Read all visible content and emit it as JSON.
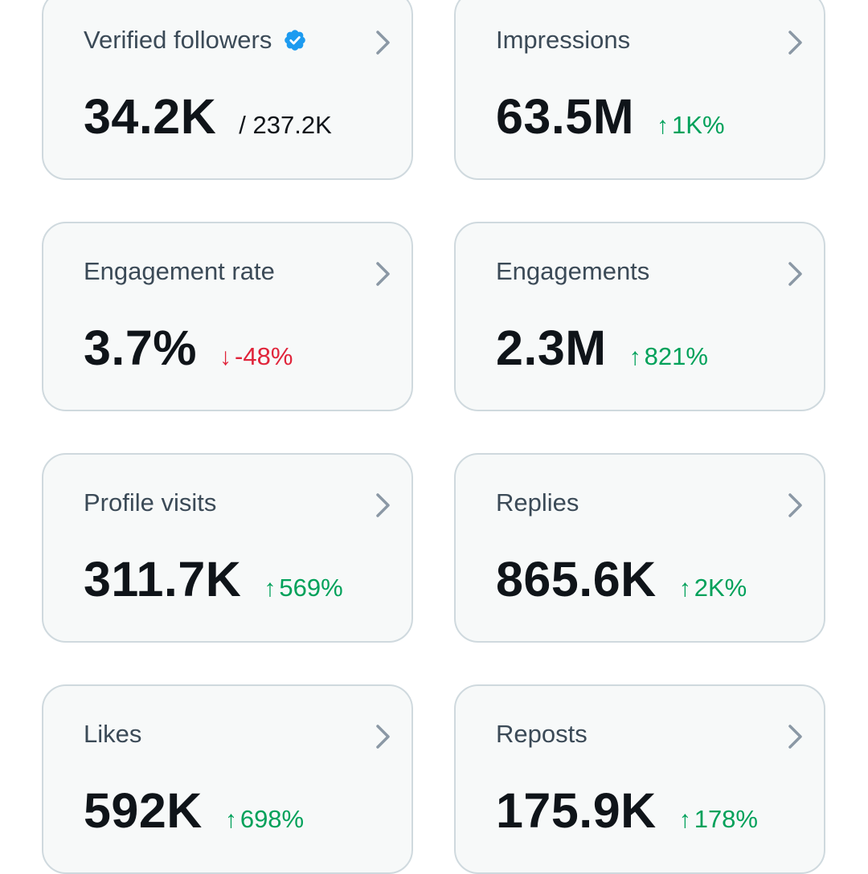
{
  "colors": {
    "card_background": "#f7f9f9",
    "card_border": "#cfd9de",
    "positive": "#00a15a",
    "negative": "#e0243a",
    "verified": "#1d9bf0"
  },
  "cards": [
    {
      "title": "Verified followers",
      "value": "34.2K",
      "sub": "/ 237.2K",
      "icon": "verified-badge-icon"
    },
    {
      "title": "Impressions",
      "value": "63.5M",
      "change": "1K%",
      "direction": "up",
      "arrow": "↑"
    },
    {
      "title": "Engagement rate",
      "value": "3.7%",
      "change": "-48%",
      "direction": "down",
      "arrow": "↓"
    },
    {
      "title": "Engagements",
      "value": "2.3M",
      "change": "821%",
      "direction": "up",
      "arrow": "↑"
    },
    {
      "title": "Profile visits",
      "value": "311.7K",
      "change": "569%",
      "direction": "up",
      "arrow": "↑"
    },
    {
      "title": "Replies",
      "value": "865.6K",
      "change": "2K%",
      "direction": "up",
      "arrow": "↑"
    },
    {
      "title": "Likes",
      "value": "592K",
      "change": "698%",
      "direction": "up",
      "arrow": "↑"
    },
    {
      "title": "Reposts",
      "value": "175.9K",
      "change": "178%",
      "direction": "up",
      "arrow": "↑"
    }
  ]
}
